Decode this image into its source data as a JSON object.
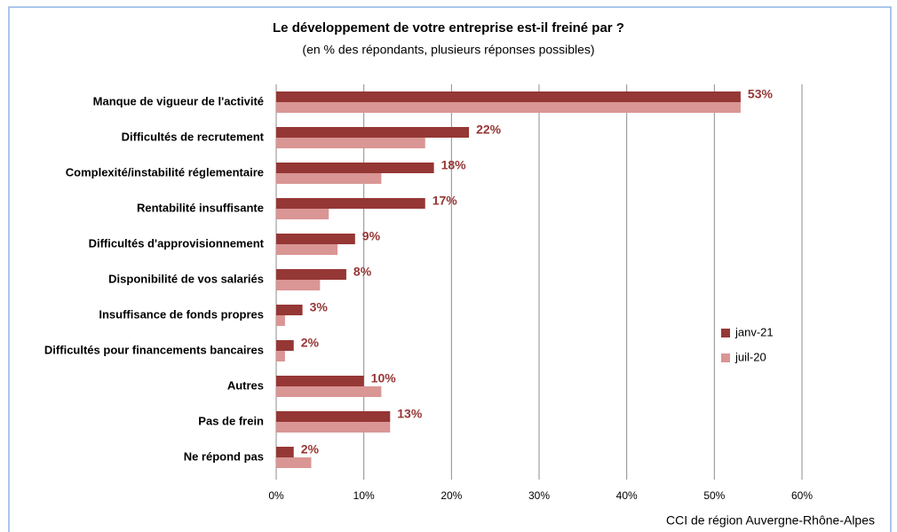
{
  "chart_data": {
    "type": "barh",
    "title": "Le développement de votre entreprise est-il freiné par ?",
    "subtitle": "(en % des répondants, plusieurs réponses possibles)",
    "source": "CCI de région Auvergne-Rhône-Alpes",
    "categories": [
      "Manque de vigueur de l'activité",
      "Difficultés de recrutement",
      "Complexité/instabilité réglementaire",
      "Rentabilité insuffisante",
      "Difficultés d'approvisionnement",
      "Disponibilité de vos salariés",
      "Insuffisance de fonds propres",
      "Difficultés pour financements bancaires",
      "Autres",
      "Pas de frein",
      "Ne répond pas"
    ],
    "series": [
      {
        "name": "janv-21",
        "color": "#953735",
        "values": [
          53,
          22,
          18,
          17,
          9,
          8,
          3,
          2,
          10,
          13,
          2
        ],
        "value_labels": [
          "53%",
          "22%",
          "18%",
          "17%",
          "9%",
          "8%",
          "3%",
          "2%",
          "10%",
          "13%",
          "2%"
        ]
      },
      {
        "name": "juil-20",
        "color": "#d99694",
        "values": [
          53,
          17,
          12,
          6,
          7,
          5,
          1,
          1,
          12,
          13,
          4
        ]
      }
    ],
    "xlim": [
      0,
      60
    ],
    "xticks": [
      {
        "value": 0,
        "label": "0%"
      },
      {
        "value": 10,
        "label": "10%"
      },
      {
        "value": 20,
        "label": "20%"
      },
      {
        "value": 30,
        "label": "30%"
      },
      {
        "value": 40,
        "label": "40%"
      },
      {
        "value": 50,
        "label": "50%"
      },
      {
        "value": 60,
        "label": "60%"
      }
    ],
    "grid": true,
    "legend": "right"
  }
}
